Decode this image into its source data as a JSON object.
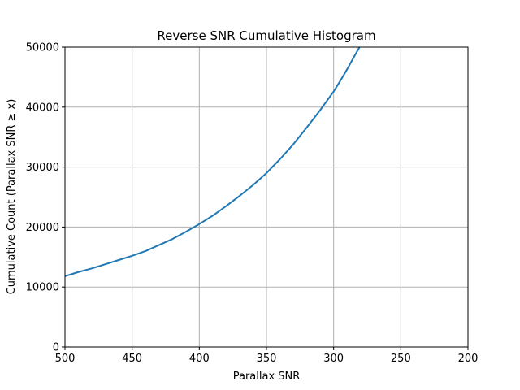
{
  "chart_data": {
    "type": "line",
    "title": "Reverse SNR Cumulative Histogram",
    "xlabel": "Parallax SNR",
    "ylabel": "Cumulative Count (Parallax SNR ≥ x)",
    "xlim": [
      500,
      200
    ],
    "ylim": [
      0,
      50000
    ],
    "x_reversed": true,
    "grid": true,
    "xticks": [
      500,
      450,
      400,
      350,
      300,
      250,
      200
    ],
    "yticks": [
      0,
      10000,
      20000,
      30000,
      40000,
      50000
    ],
    "series": [
      {
        "color": "#1f77b4",
        "x": [
          500,
          490,
          480,
          470,
          460,
          450,
          440,
          430,
          420,
          410,
          400,
          390,
          380,
          370,
          360,
          350,
          340,
          330,
          320,
          310,
          300,
          295,
          290,
          285,
          280
        ],
        "y": [
          11800,
          12500,
          13100,
          13800,
          14500,
          15200,
          16000,
          17000,
          18000,
          19200,
          20500,
          21900,
          23500,
          25200,
          27000,
          29000,
          31300,
          33800,
          36600,
          39500,
          42600,
          44400,
          46300,
          48300,
          50300
        ]
      }
    ]
  }
}
